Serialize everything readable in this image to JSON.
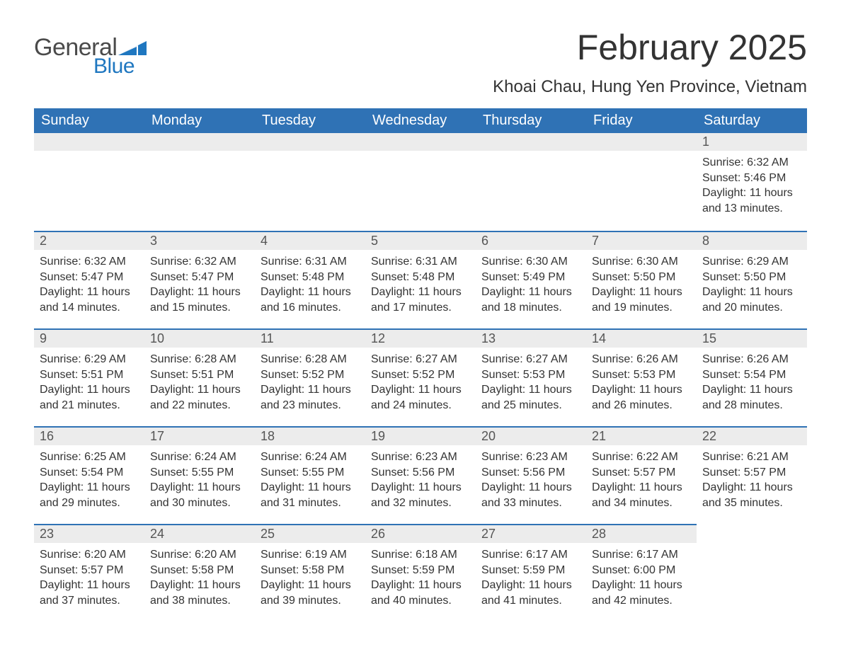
{
  "brand": {
    "word1": "General",
    "word2": "Blue",
    "flag_color": "#1f77c0",
    "text_color_general": "#4a4a4a",
    "text_color_blue": "#1f77c0"
  },
  "title": "February 2025",
  "location": "Khoai Chau, Hung Yen Province, Vietnam",
  "colors": {
    "header_bg": "#2f72b5",
    "header_text": "#ffffff",
    "daynum_bg": "#ececec",
    "daynum_border": "#2f72b5",
    "body_text": "#333333",
    "page_bg": "#ffffff"
  },
  "weekdays": [
    "Sunday",
    "Monday",
    "Tuesday",
    "Wednesday",
    "Thursday",
    "Friday",
    "Saturday"
  ],
  "weeks": [
    [
      null,
      null,
      null,
      null,
      null,
      null,
      {
        "n": "1",
        "sunrise": "6:32 AM",
        "sunset": "5:46 PM",
        "daylight": "11 hours and 13 minutes."
      }
    ],
    [
      {
        "n": "2",
        "sunrise": "6:32 AM",
        "sunset": "5:47 PM",
        "daylight": "11 hours and 14 minutes."
      },
      {
        "n": "3",
        "sunrise": "6:32 AM",
        "sunset": "5:47 PM",
        "daylight": "11 hours and 15 minutes."
      },
      {
        "n": "4",
        "sunrise": "6:31 AM",
        "sunset": "5:48 PM",
        "daylight": "11 hours and 16 minutes."
      },
      {
        "n": "5",
        "sunrise": "6:31 AM",
        "sunset": "5:48 PM",
        "daylight": "11 hours and 17 minutes."
      },
      {
        "n": "6",
        "sunrise": "6:30 AM",
        "sunset": "5:49 PM",
        "daylight": "11 hours and 18 minutes."
      },
      {
        "n": "7",
        "sunrise": "6:30 AM",
        "sunset": "5:50 PM",
        "daylight": "11 hours and 19 minutes."
      },
      {
        "n": "8",
        "sunrise": "6:29 AM",
        "sunset": "5:50 PM",
        "daylight": "11 hours and 20 minutes."
      }
    ],
    [
      {
        "n": "9",
        "sunrise": "6:29 AM",
        "sunset": "5:51 PM",
        "daylight": "11 hours and 21 minutes."
      },
      {
        "n": "10",
        "sunrise": "6:28 AM",
        "sunset": "5:51 PM",
        "daylight": "11 hours and 22 minutes."
      },
      {
        "n": "11",
        "sunrise": "6:28 AM",
        "sunset": "5:52 PM",
        "daylight": "11 hours and 23 minutes."
      },
      {
        "n": "12",
        "sunrise": "6:27 AM",
        "sunset": "5:52 PM",
        "daylight": "11 hours and 24 minutes."
      },
      {
        "n": "13",
        "sunrise": "6:27 AM",
        "sunset": "5:53 PM",
        "daylight": "11 hours and 25 minutes."
      },
      {
        "n": "14",
        "sunrise": "6:26 AM",
        "sunset": "5:53 PM",
        "daylight": "11 hours and 26 minutes."
      },
      {
        "n": "15",
        "sunrise": "6:26 AM",
        "sunset": "5:54 PM",
        "daylight": "11 hours and 28 minutes."
      }
    ],
    [
      {
        "n": "16",
        "sunrise": "6:25 AM",
        "sunset": "5:54 PM",
        "daylight": "11 hours and 29 minutes."
      },
      {
        "n": "17",
        "sunrise": "6:24 AM",
        "sunset": "5:55 PM",
        "daylight": "11 hours and 30 minutes."
      },
      {
        "n": "18",
        "sunrise": "6:24 AM",
        "sunset": "5:55 PM",
        "daylight": "11 hours and 31 minutes."
      },
      {
        "n": "19",
        "sunrise": "6:23 AM",
        "sunset": "5:56 PM",
        "daylight": "11 hours and 32 minutes."
      },
      {
        "n": "20",
        "sunrise": "6:23 AM",
        "sunset": "5:56 PM",
        "daylight": "11 hours and 33 minutes."
      },
      {
        "n": "21",
        "sunrise": "6:22 AM",
        "sunset": "5:57 PM",
        "daylight": "11 hours and 34 minutes."
      },
      {
        "n": "22",
        "sunrise": "6:21 AM",
        "sunset": "5:57 PM",
        "daylight": "11 hours and 35 minutes."
      }
    ],
    [
      {
        "n": "23",
        "sunrise": "6:20 AM",
        "sunset": "5:57 PM",
        "daylight": "11 hours and 37 minutes."
      },
      {
        "n": "24",
        "sunrise": "6:20 AM",
        "sunset": "5:58 PM",
        "daylight": "11 hours and 38 minutes."
      },
      {
        "n": "25",
        "sunrise": "6:19 AM",
        "sunset": "5:58 PM",
        "daylight": "11 hours and 39 minutes."
      },
      {
        "n": "26",
        "sunrise": "6:18 AM",
        "sunset": "5:59 PM",
        "daylight": "11 hours and 40 minutes."
      },
      {
        "n": "27",
        "sunrise": "6:17 AM",
        "sunset": "5:59 PM",
        "daylight": "11 hours and 41 minutes."
      },
      {
        "n": "28",
        "sunrise": "6:17 AM",
        "sunset": "6:00 PM",
        "daylight": "11 hours and 42 minutes."
      },
      null
    ]
  ],
  "labels": {
    "sunrise": "Sunrise: ",
    "sunset": "Sunset: ",
    "daylight": "Daylight: "
  }
}
